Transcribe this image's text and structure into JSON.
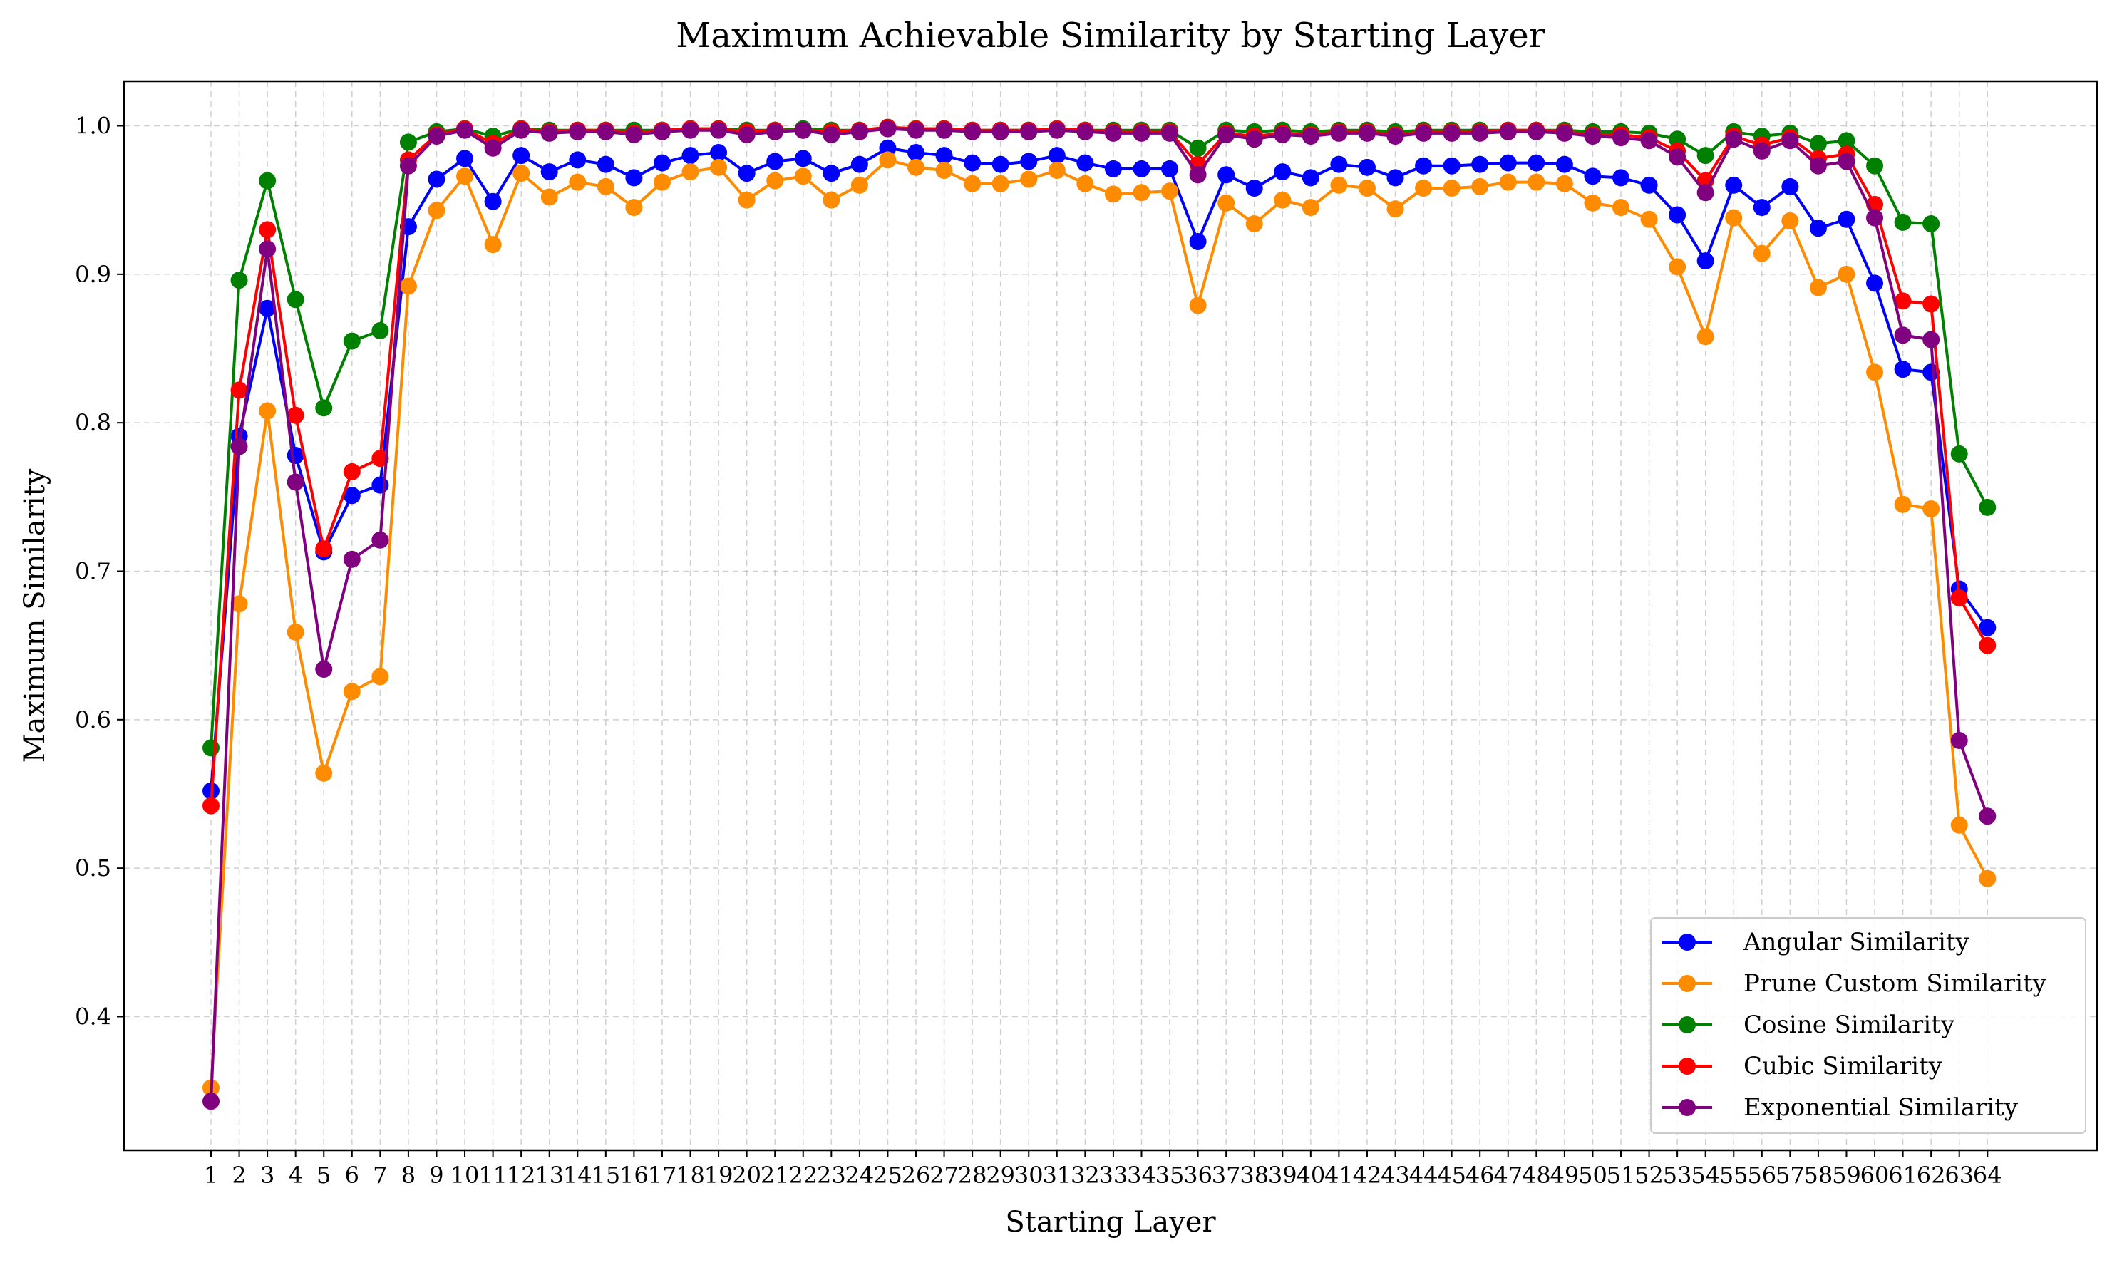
{
  "chart_data": {
    "type": "line",
    "title": "Maximum Achievable Similarity by Starting Layer",
    "xlabel": "Starting Layer",
    "ylabel": "Maximum Similarity",
    "x": [
      1,
      2,
      3,
      4,
      5,
      6,
      7,
      8,
      9,
      10,
      11,
      12,
      13,
      14,
      15,
      16,
      17,
      18,
      19,
      20,
      21,
      22,
      23,
      24,
      25,
      26,
      27,
      28,
      29,
      30,
      31,
      32,
      33,
      34,
      35,
      36,
      37,
      38,
      39,
      40,
      41,
      42,
      43,
      44,
      45,
      46,
      47,
      48,
      49,
      50,
      51,
      52,
      53,
      54,
      55,
      56,
      57,
      58,
      59,
      60,
      61,
      62,
      63,
      64
    ],
    "xticks": [
      "1",
      "2",
      "3",
      "4",
      "5",
      "6",
      "7",
      "8",
      "9",
      "10",
      "11",
      "12",
      "13",
      "14",
      "15",
      "16",
      "17",
      "18",
      "19",
      "20",
      "21",
      "22",
      "23",
      "24",
      "25",
      "26",
      "27",
      "28",
      "29",
      "30",
      "31",
      "32",
      "33",
      "34",
      "35",
      "36",
      "37",
      "38",
      "39",
      "40",
      "41",
      "42",
      "43",
      "44",
      "45",
      "46",
      "47",
      "48",
      "49",
      "50",
      "51",
      "52",
      "53",
      "54",
      "55",
      "56",
      "57",
      "58",
      "59",
      "60",
      "61",
      "62",
      "63",
      "64"
    ],
    "yticks": [
      "0.4",
      "0.5",
      "0.6",
      "0.7",
      "0.8",
      "0.9",
      "1.0"
    ],
    "ylim": [
      0.31,
      1.03
    ],
    "grid": true,
    "legend_position": "lower-right",
    "series": [
      {
        "name": "Angular Similarity",
        "color": "#0000ff",
        "values": [
          0.552,
          0.791,
          0.877,
          0.778,
          0.713,
          0.751,
          0.758,
          0.932,
          0.964,
          0.978,
          0.949,
          0.98,
          0.969,
          0.977,
          0.974,
          0.965,
          0.975,
          0.98,
          0.982,
          0.968,
          0.976,
          0.978,
          0.968,
          0.974,
          0.985,
          0.982,
          0.98,
          0.975,
          0.974,
          0.976,
          0.98,
          0.975,
          0.971,
          0.971,
          0.971,
          0.922,
          0.967,
          0.958,
          0.969,
          0.965,
          0.974,
          0.972,
          0.965,
          0.973,
          0.973,
          0.974,
          0.975,
          0.975,
          0.974,
          0.966,
          0.965,
          0.96,
          0.94,
          0.909,
          0.96,
          0.945,
          0.959,
          0.931,
          0.937,
          0.894,
          0.836,
          0.834,
          0.688,
          0.662
        ]
      },
      {
        "name": "Prune Custom Similarity",
        "color": "#ff8c00",
        "values": [
          0.352,
          0.678,
          0.808,
          0.659,
          0.564,
          0.619,
          0.629,
          0.892,
          0.943,
          0.966,
          0.92,
          0.968,
          0.952,
          0.962,
          0.959,
          0.945,
          0.962,
          0.969,
          0.972,
          0.95,
          0.963,
          0.966,
          0.95,
          0.96,
          0.977,
          0.972,
          0.97,
          0.961,
          0.961,
          0.964,
          0.97,
          0.961,
          0.954,
          0.955,
          0.956,
          0.879,
          0.948,
          0.934,
          0.95,
          0.945,
          0.96,
          0.958,
          0.944,
          0.958,
          0.958,
          0.959,
          0.962,
          0.962,
          0.961,
          0.948,
          0.945,
          0.937,
          0.905,
          0.858,
          0.938,
          0.914,
          0.936,
          0.891,
          0.9,
          0.834,
          0.745,
          0.742,
          0.529,
          0.493
        ]
      },
      {
        "name": "Cosine Similarity",
        "color": "#008000",
        "values": [
          0.581,
          0.896,
          0.963,
          0.883,
          0.81,
          0.855,
          0.862,
          0.989,
          0.996,
          0.998,
          0.993,
          0.998,
          0.997,
          0.997,
          0.997,
          0.997,
          0.997,
          0.998,
          0.998,
          0.997,
          0.997,
          0.998,
          0.997,
          0.997,
          0.999,
          0.998,
          0.998,
          0.997,
          0.997,
          0.997,
          0.998,
          0.997,
          0.997,
          0.997,
          0.997,
          0.985,
          0.997,
          0.996,
          0.997,
          0.996,
          0.997,
          0.997,
          0.996,
          0.997,
          0.997,
          0.997,
          0.997,
          0.997,
          0.997,
          0.996,
          0.996,
          0.995,
          0.991,
          0.98,
          0.996,
          0.993,
          0.995,
          0.988,
          0.99,
          0.973,
          0.935,
          0.934,
          0.779,
          0.743
        ]
      },
      {
        "name": "Cubic Similarity",
        "color": "#ff0000",
        "values": [
          0.542,
          0.822,
          0.93,
          0.805,
          0.715,
          0.767,
          0.776,
          0.977,
          0.994,
          0.998,
          0.988,
          0.998,
          0.996,
          0.997,
          0.997,
          0.995,
          0.997,
          0.998,
          0.998,
          0.996,
          0.997,
          0.997,
          0.996,
          0.997,
          0.999,
          0.998,
          0.998,
          0.997,
          0.997,
          0.997,
          0.998,
          0.997,
          0.996,
          0.996,
          0.996,
          0.974,
          0.995,
          0.993,
          0.995,
          0.994,
          0.996,
          0.996,
          0.994,
          0.996,
          0.996,
          0.996,
          0.997,
          0.997,
          0.996,
          0.994,
          0.994,
          0.992,
          0.983,
          0.963,
          0.993,
          0.987,
          0.992,
          0.978,
          0.981,
          0.947,
          0.882,
          0.88,
          0.682,
          0.65
        ]
      },
      {
        "name": "Exponential Similarity",
        "color": "#800080",
        "values": [
          0.343,
          0.784,
          0.917,
          0.76,
          0.634,
          0.708,
          0.721,
          0.973,
          0.993,
          0.997,
          0.985,
          0.997,
          0.995,
          0.996,
          0.996,
          0.994,
          0.996,
          0.997,
          0.997,
          0.994,
          0.996,
          0.997,
          0.994,
          0.996,
          0.998,
          0.997,
          0.997,
          0.996,
          0.996,
          0.996,
          0.997,
          0.996,
          0.995,
          0.995,
          0.995,
          0.967,
          0.994,
          0.991,
          0.994,
          0.993,
          0.995,
          0.995,
          0.993,
          0.995,
          0.995,
          0.995,
          0.996,
          0.996,
          0.995,
          0.993,
          0.992,
          0.99,
          0.979,
          0.955,
          0.991,
          0.983,
          0.99,
          0.973,
          0.976,
          0.938,
          0.859,
          0.856,
          0.586,
          0.535
        ]
      }
    ]
  }
}
